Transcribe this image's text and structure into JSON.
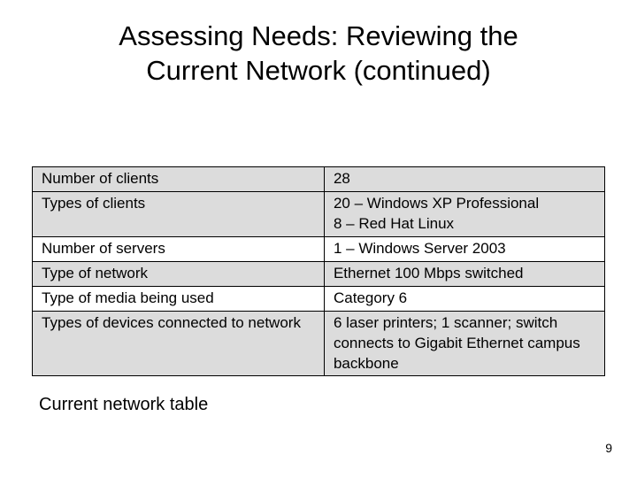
{
  "title_line1": "Assessing Needs: Reviewing the",
  "title_line2": "Current Network (continued)",
  "caption": "Current network table",
  "page_number": "9",
  "table": {
    "columns": [
      "label",
      "value"
    ],
    "col_widths_pct": [
      51,
      49
    ],
    "border_color": "#000000",
    "shaded_bg": "#dcdcdc",
    "plain_bg": "#ffffff",
    "font_family": "Trebuchet MS",
    "font_size_pt": 13,
    "rows": [
      {
        "shaded": true,
        "label": "Number of clients",
        "value": "28"
      },
      {
        "shaded": true,
        "label": "Types of clients",
        "value": "20 – Windows XP Professional\n8 – Red Hat Linux"
      },
      {
        "shaded": false,
        "label": "Number of servers",
        "value": "1 – Windows Server 2003"
      },
      {
        "shaded": true,
        "label": "Type of network",
        "value": "Ethernet 100 Mbps switched"
      },
      {
        "shaded": false,
        "label": "Type of media being used",
        "value": "Category 6"
      },
      {
        "shaded": true,
        "label": "Types of devices connected to network",
        "value": "6 laser printers; 1 scanner; switch connects to Gigabit Ethernet campus backbone"
      }
    ]
  },
  "colors": {
    "background": "#ffffff",
    "text": "#000000"
  }
}
